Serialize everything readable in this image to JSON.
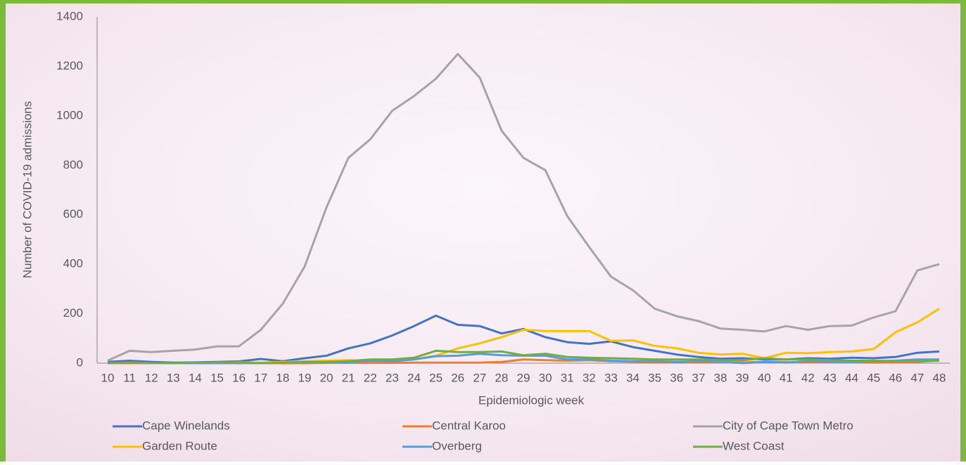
{
  "chart_data": {
    "type": "line",
    "x_label": "Epidemiologic week",
    "y_label": "Number of COVID-19 admissions",
    "categories": [
      "10",
      "11",
      "12",
      "13",
      "14",
      "15",
      "16",
      "17",
      "18",
      "19",
      "20",
      "21",
      "22",
      "23",
      "24",
      "25",
      "26",
      "27",
      "28",
      "29",
      "30",
      "31",
      "32",
      "33",
      "34",
      "35",
      "36",
      "37",
      "38",
      "39",
      "40",
      "41",
      "42",
      "43",
      "44",
      "45",
      "46",
      "47",
      "48"
    ],
    "ylim": [
      0,
      1400
    ],
    "yticks": [
      0,
      200,
      400,
      600,
      800,
      1000,
      1200,
      1400
    ],
    "grid": false,
    "legend": "bottom",
    "series": [
      {
        "name": "Cape Winelands",
        "color": "#4472c4",
        "values": [
          5,
          10,
          5,
          2,
          3,
          5,
          7,
          17,
          8,
          20,
          30,
          60,
          80,
          112,
          150,
          192,
          155,
          150,
          120,
          138,
          105,
          85,
          78,
          88,
          65,
          50,
          35,
          25,
          18,
          20,
          15,
          15,
          20,
          18,
          22,
          20,
          25,
          42,
          47
        ]
      },
      {
        "name": "Central Karoo",
        "color": "#ed7d31",
        "values": [
          0,
          0,
          0,
          0,
          0,
          0,
          0,
          0,
          0,
          0,
          1,
          1,
          1,
          1,
          2,
          2,
          2,
          2,
          5,
          15,
          12,
          10,
          12,
          8,
          6,
          5,
          5,
          5,
          4,
          3,
          5,
          4,
          3,
          3,
          3,
          2,
          3,
          5,
          12
        ]
      },
      {
        "name": "City of Cape Town Metro",
        "color": "#a5a5a5",
        "values": [
          10,
          50,
          45,
          50,
          55,
          68,
          68,
          135,
          240,
          390,
          630,
          830,
          905,
          1020,
          1080,
          1150,
          1250,
          1155,
          940,
          830,
          780,
          595,
          470,
          350,
          295,
          220,
          190,
          170,
          140,
          135,
          128,
          150,
          135,
          150,
          152,
          185,
          210,
          375,
          400
        ]
      },
      {
        "name": "Garden Route",
        "color": "#ffc000",
        "values": [
          0,
          2,
          0,
          0,
          0,
          2,
          3,
          2,
          5,
          8,
          10,
          12,
          10,
          10,
          15,
          30,
          60,
          80,
          105,
          135,
          130,
          130,
          130,
          90,
          92,
          70,
          60,
          42,
          35,
          38,
          20,
          42,
          40,
          45,
          47,
          57,
          125,
          165,
          220
        ]
      },
      {
        "name": "Overberg",
        "color": "#5b9bd5",
        "values": [
          0,
          2,
          0,
          0,
          0,
          0,
          0,
          0,
          2,
          3,
          3,
          3,
          10,
          8,
          15,
          28,
          30,
          38,
          32,
          30,
          30,
          15,
          15,
          10,
          8,
          8,
          5,
          8,
          5,
          0,
          5,
          2,
          8,
          5,
          3,
          8,
          10,
          15,
          15
        ]
      },
      {
        "name": "West Coast",
        "color": "#70ad47",
        "values": [
          0,
          3,
          0,
          0,
          2,
          2,
          2,
          0,
          2,
          5,
          5,
          8,
          15,
          15,
          22,
          50,
          45,
          45,
          47,
          32,
          38,
          25,
          22,
          20,
          18,
          15,
          15,
          15,
          12,
          12,
          20,
          15,
          15,
          12,
          10,
          10,
          8,
          8,
          10
        ]
      }
    ]
  }
}
